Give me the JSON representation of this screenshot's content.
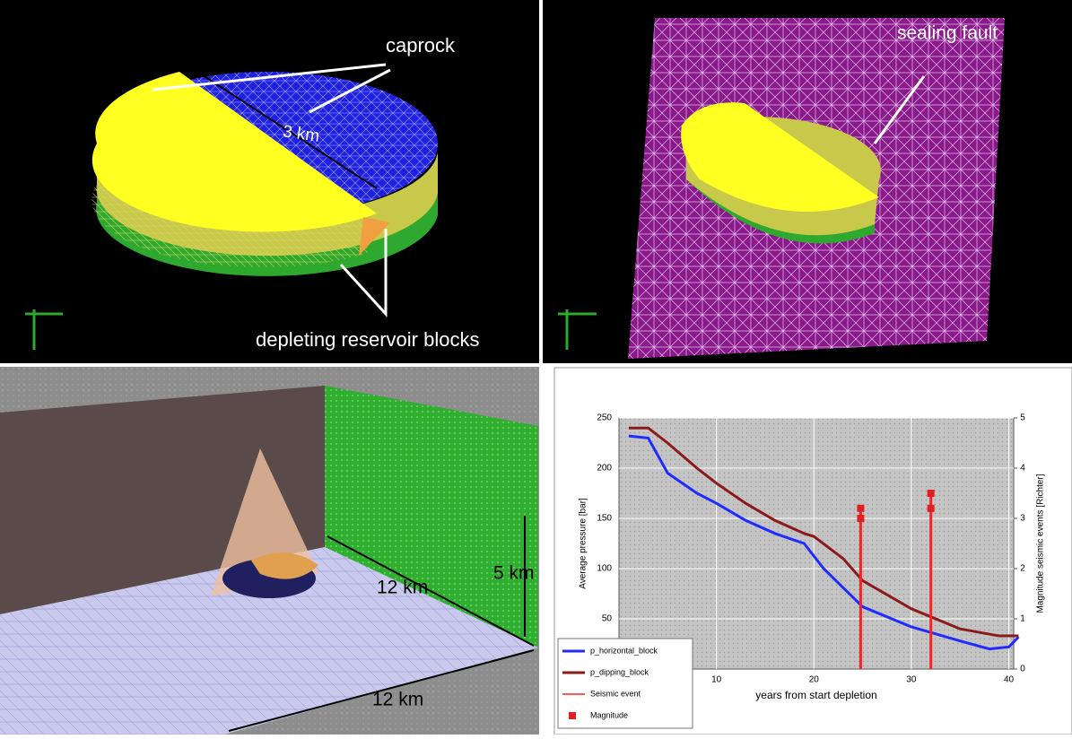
{
  "panels": {
    "top_left": {
      "caprock": "caprock",
      "distance": "3 km",
      "blocks": "depleting reservoir blocks"
    },
    "top_right": {
      "fault": "sealing fault"
    },
    "bottom_left": {
      "width": "12 km",
      "depth": "12 km",
      "height": "5 km"
    }
  },
  "chart_data": {
    "type": "line",
    "xlabel": "years from start depletion",
    "ylabel": "Average pressure [bar]",
    "y2label": "Magnitude seismic events [Richter]",
    "xlim": [
      0,
      40.5
    ],
    "xticks": [
      10,
      20,
      30,
      40
    ],
    "ylim": [
      0,
      250
    ],
    "yticks": [
      50,
      100,
      150,
      200,
      250
    ],
    "y2lim": [
      0,
      5
    ],
    "y2ticks": [
      0,
      1,
      2,
      3,
      4,
      5
    ],
    "grid": true,
    "legend": "lower left",
    "series": [
      {
        "name": "p_horizontal_block",
        "color": "#1f2bff",
        "kind": "line",
        "x": [
          1,
          3,
          5,
          8,
          10,
          13,
          16,
          19,
          21,
          25,
          30,
          35,
          38,
          40,
          41
        ],
        "values": [
          232,
          230,
          195,
          175,
          165,
          148,
          135,
          125,
          100,
          62,
          42,
          28,
          20,
          22,
          32
        ]
      },
      {
        "name": "p_dipping_block",
        "color": "#8b1a1a",
        "kind": "line",
        "x": [
          1,
          3,
          5,
          8,
          10,
          13,
          16,
          19,
          20,
          23,
          25,
          30,
          35,
          39,
          41
        ],
        "values": [
          240,
          240,
          225,
          200,
          185,
          165,
          148,
          135,
          132,
          110,
          88,
          60,
          40,
          33,
          33
        ]
      },
      {
        "name": "Seismic event",
        "color": "#ff2020",
        "kind": "event",
        "axis": "y2",
        "x": [
          24.8,
          32
        ],
        "values": [
          3.2,
          3.5
        ]
      },
      {
        "name": "Magnitude",
        "color": "#e02020",
        "kind": "marker",
        "axis": "y2",
        "x": [
          24.8,
          24.8,
          32,
          32
        ],
        "values": [
          3.2,
          3.0,
          3.5,
          3.2
        ]
      }
    ]
  }
}
